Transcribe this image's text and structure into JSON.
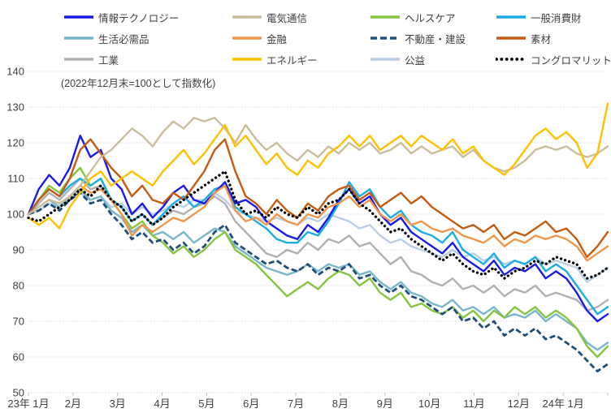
{
  "chart_data": {
    "type": "line",
    "subtitle": "(2022年12月末=100として指数化)",
    "ylabel": "",
    "xlabel": "",
    "ylim": [
      50,
      140
    ],
    "ytick_step": 10,
    "grid": "horizontal-dotted",
    "legend_position": "top",
    "x_tick_labels": [
      "23年 1月",
      "2月",
      "3月",
      "4月",
      "5月",
      "6月",
      "7月",
      "8月",
      "9月",
      "10月",
      "11月",
      "12月",
      "24年 1月"
    ],
    "x_unit": "weekly points, Jan 2023 - Jan 2024",
    "series": [
      {
        "name": "情報テクノロジー",
        "color": "#1a1ae6",
        "style": "solid",
        "values": [
          100,
          107,
          111,
          108,
          113,
          122,
          116,
          118,
          110,
          107,
          100,
          103,
          99,
          102,
          106,
          108,
          104,
          103,
          106,
          109,
          103,
          104,
          102,
          98,
          96,
          94,
          93,
          97,
          95,
          99,
          104,
          107,
          103,
          105,
          100,
          97,
          99,
          95,
          93,
          91,
          89,
          92,
          88,
          86,
          84,
          87,
          83,
          85,
          84,
          86,
          82,
          84,
          82,
          78,
          73,
          70,
          72
        ]
      },
      {
        "name": "電気通信",
        "color": "#c9bd9b",
        "style": "solid",
        "values": [
          100,
          102,
          104,
          103,
          105,
          108,
          112,
          116,
          118,
          121,
          124,
          122,
          119,
          123,
          126,
          124,
          127,
          126,
          127,
          124,
          120,
          125,
          121,
          118,
          120,
          117,
          115,
          118,
          116,
          119,
          117,
          120,
          118,
          120,
          117,
          118,
          120,
          117,
          119,
          117,
          118,
          119,
          116,
          118,
          115,
          113,
          112,
          113,
          115,
          118,
          119,
          118,
          119,
          117,
          116,
          117,
          119
        ]
      },
      {
        "name": "ヘルスケア",
        "color": "#86c440",
        "style": "solid",
        "values": [
          100,
          104,
          108,
          106,
          110,
          113,
          108,
          110,
          104,
          100,
          96,
          98,
          94,
          92,
          89,
          91,
          88,
          90,
          93,
          95,
          90,
          88,
          86,
          83,
          80,
          77,
          79,
          81,
          79,
          82,
          84,
          83,
          80,
          82,
          78,
          76,
          78,
          74,
          75,
          73,
          72,
          74,
          71,
          73,
          70,
          73,
          71,
          74,
          72,
          74,
          71,
          73,
          71,
          68,
          63,
          60,
          63
        ]
      },
      {
        "name": "一般消費財",
        "color": "#1cade4",
        "style": "solid",
        "values": [
          100,
          104,
          107,
          105,
          108,
          110,
          108,
          110,
          104,
          102,
          98,
          100,
          97,
          100,
          103,
          105,
          102,
          104,
          107,
          108,
          102,
          100,
          98,
          96,
          93,
          92,
          92,
          95,
          94,
          98,
          103,
          109,
          105,
          107,
          102,
          99,
          101,
          97,
          95,
          94,
          92,
          95,
          90,
          88,
          86,
          89,
          85,
          87,
          86,
          88,
          84,
          86,
          84,
          80,
          76,
          72,
          74
        ]
      },
      {
        "name": "生活必需品",
        "color": "#76b7c9",
        "style": "solid",
        "values": [
          100,
          102,
          104,
          102,
          105,
          107,
          104,
          105,
          101,
          99,
          95,
          97,
          94,
          95,
          93,
          95,
          92,
          94,
          96,
          95,
          91,
          89,
          87,
          85,
          84,
          83,
          84,
          86,
          84,
          86,
          85,
          86,
          83,
          84,
          81,
          79,
          81,
          78,
          77,
          75,
          74,
          76,
          73,
          74,
          72,
          74,
          71,
          72,
          71,
          73,
          70,
          72,
          70,
          68,
          64,
          62,
          64
        ]
      },
      {
        "name": "金融",
        "color": "#f0964b",
        "style": "solid",
        "values": [
          100,
          102,
          104,
          103,
          105,
          108,
          106,
          107,
          104,
          100,
          94,
          97,
          95,
          97,
          99,
          98,
          100,
          102,
          106,
          108,
          101,
          98,
          99,
          97,
          100,
          98,
          97,
          100,
          99,
          102,
          103,
          105,
          102,
          104,
          100,
          98,
          100,
          97,
          98,
          96,
          95,
          96,
          94,
          93,
          92,
          94,
          91,
          93,
          92,
          94,
          93,
          94,
          93,
          91,
          87,
          89,
          91
        ]
      },
      {
        "name": "不動産・建設",
        "color": "#1f4e79",
        "style": "dashed",
        "values": [
          100,
          101,
          103,
          101,
          104,
          106,
          103,
          104,
          100,
          97,
          93,
          95,
          92,
          93,
          90,
          92,
          89,
          91,
          95,
          97,
          92,
          90,
          88,
          86,
          87,
          85,
          84,
          86,
          83,
          85,
          84,
          86,
          82,
          83,
          80,
          78,
          80,
          77,
          76,
          74,
          72,
          74,
          70,
          71,
          68,
          70,
          66,
          68,
          66,
          68,
          65,
          66,
          64,
          62,
          59,
          56,
          58
        ]
      },
      {
        "name": "素材",
        "color": "#c55a11",
        "style": "solid",
        "values": [
          100,
          104,
          107,
          105,
          110,
          118,
          121,
          117,
          113,
          110,
          105,
          108,
          104,
          103,
          106,
          104,
          108,
          112,
          118,
          121,
          112,
          105,
          103,
          100,
          104,
          101,
          99,
          103,
          101,
          105,
          107,
          108,
          104,
          106,
          102,
          104,
          106,
          103,
          105,
          102,
          100,
          98,
          96,
          97,
          95,
          97,
          93,
          95,
          94,
          96,
          98,
          95,
          96,
          93,
          88,
          91,
          95
        ]
      },
      {
        "name": "工業",
        "color": "#b0b0b0",
        "style": "solid",
        "values": [
          100,
          103,
          106,
          104,
          107,
          110,
          107,
          108,
          104,
          102,
          98,
          100,
          97,
          99,
          101,
          100,
          102,
          103,
          105,
          103,
          98,
          95,
          92,
          89,
          88,
          90,
          89,
          92,
          90,
          93,
          92,
          94,
          91,
          92,
          89,
          86,
          88,
          84,
          83,
          81,
          80,
          82,
          79,
          80,
          78,
          80,
          77,
          79,
          78,
          80,
          77,
          78,
          77,
          76,
          73,
          74,
          76
        ]
      },
      {
        "name": "エネルギー",
        "color": "#ffc000",
        "style": "solid",
        "values": [
          99,
          97,
          99,
          96,
          102,
          106,
          110,
          112,
          108,
          110,
          112,
          110,
          108,
          112,
          115,
          118,
          114,
          117,
          121,
          125,
          119,
          122,
          118,
          114,
          117,
          113,
          111,
          115,
          113,
          117,
          119,
          122,
          119,
          122,
          118,
          120,
          122,
          119,
          122,
          120,
          118,
          121,
          117,
          119,
          115,
          113,
          111,
          114,
          118,
          122,
          124,
          121,
          123,
          120,
          113,
          117,
          131
        ]
      },
      {
        "name": "公益",
        "color": "#b9cde5",
        "style": "solid",
        "values": [
          100,
          101,
          103,
          102,
          104,
          106,
          104,
          105,
          102,
          103,
          100,
          102,
          100,
          101,
          103,
          102,
          104,
          104,
          106,
          104,
          101,
          100,
          99,
          98,
          99,
          98,
          97,
          99,
          98,
          100,
          99,
          98,
          96,
          97,
          94,
          92,
          93,
          91,
          90,
          89,
          88,
          90,
          88,
          89,
          87,
          88,
          86,
          87,
          86,
          88,
          86,
          87,
          86,
          85,
          81,
          83,
          85
        ]
      },
      {
        "name": "コングロマリット",
        "color": "#000000",
        "style": "dotted",
        "values": [
          99,
          98,
          100,
          102,
          104,
          107,
          105,
          108,
          104,
          102,
          98,
          100,
          97,
          99,
          102,
          104,
          106,
          108,
          110,
          112,
          104,
          100,
          101,
          99,
          102,
          100,
          99,
          102,
          100,
          103,
          104,
          107,
          103,
          101,
          98,
          95,
          96,
          93,
          91,
          89,
          87,
          89,
          86,
          84,
          83,
          85,
          82,
          84,
          85,
          87,
          86,
          88,
          87,
          86,
          82,
          83,
          85
        ]
      }
    ],
    "colors": {
      "grid": "#d9d9d9",
      "axis_text": "#404040",
      "axis_line": "#c0c0c0",
      "background": "#ffffff"
    }
  }
}
